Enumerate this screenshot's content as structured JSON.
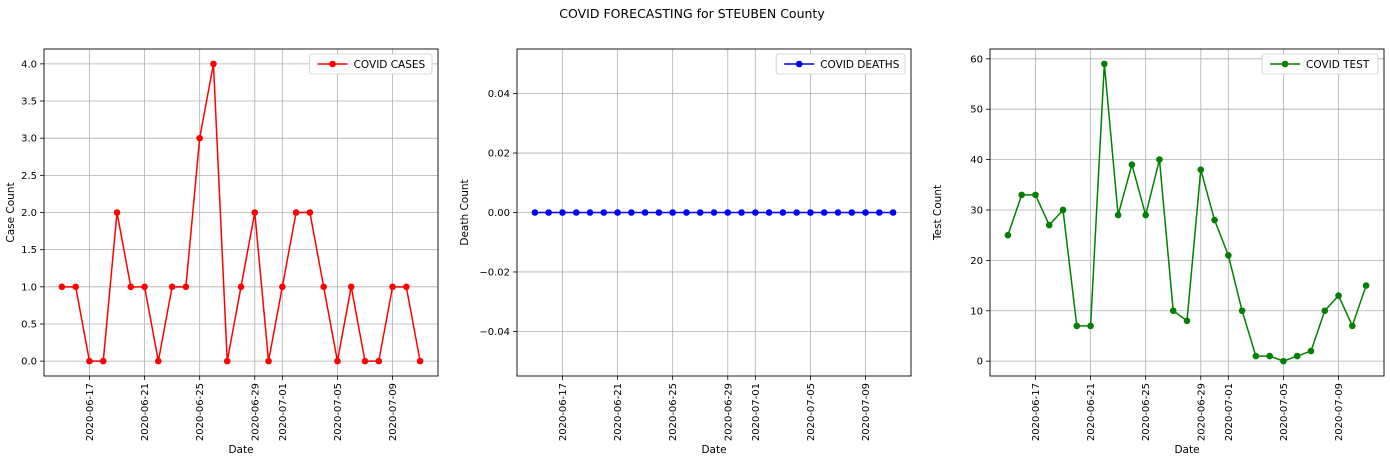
{
  "figure": {
    "title": "COVID FORECASTING for STEUBEN County"
  },
  "chart_data": [
    {
      "type": "line",
      "xlabel": "Date",
      "ylabel": "Case Count",
      "x": [
        "2020-06-15",
        "2020-06-16",
        "2020-06-17",
        "2020-06-18",
        "2020-06-19",
        "2020-06-20",
        "2020-06-21",
        "2020-06-22",
        "2020-06-23",
        "2020-06-24",
        "2020-06-25",
        "2020-06-26",
        "2020-06-27",
        "2020-06-28",
        "2020-06-29",
        "2020-06-30",
        "2020-07-01",
        "2020-07-02",
        "2020-07-03",
        "2020-07-04",
        "2020-07-05",
        "2020-07-06",
        "2020-07-07",
        "2020-07-08",
        "2020-07-09",
        "2020-07-10",
        "2020-07-11"
      ],
      "series": [
        {
          "name": "COVID CASES",
          "color": "#ff0000",
          "values": [
            1,
            1,
            0,
            0,
            2,
            1,
            1,
            0,
            1,
            1,
            3,
            4,
            0,
            1,
            2,
            0,
            1,
            2,
            2,
            1,
            0,
            1,
            0,
            0,
            1,
            1,
            0
          ]
        }
      ],
      "xticks": [
        "2020-06-17",
        "2020-06-21",
        "2020-06-25",
        "2020-06-29",
        "2020-07-01",
        "2020-07-05",
        "2020-07-09"
      ],
      "yticks": [
        0.0,
        0.5,
        1.0,
        1.5,
        2.0,
        2.5,
        3.0,
        3.5,
        4.0
      ],
      "ytick_labels": [
        "0.0",
        "0.5",
        "1.0",
        "1.5",
        "2.0",
        "2.5",
        "3.0",
        "3.5",
        "4.0"
      ],
      "ylim": [
        -0.2,
        4.2
      ],
      "grid": true,
      "legend": "top-right"
    },
    {
      "type": "line",
      "xlabel": "Date",
      "ylabel": "Death Count",
      "x": [
        "2020-06-15",
        "2020-06-16",
        "2020-06-17",
        "2020-06-18",
        "2020-06-19",
        "2020-06-20",
        "2020-06-21",
        "2020-06-22",
        "2020-06-23",
        "2020-06-24",
        "2020-06-25",
        "2020-06-26",
        "2020-06-27",
        "2020-06-28",
        "2020-06-29",
        "2020-06-30",
        "2020-07-01",
        "2020-07-02",
        "2020-07-03",
        "2020-07-04",
        "2020-07-05",
        "2020-07-06",
        "2020-07-07",
        "2020-07-08",
        "2020-07-09",
        "2020-07-10",
        "2020-07-11"
      ],
      "series": [
        {
          "name": "COVID DEATHS",
          "color": "#0000ff",
          "values": [
            0,
            0,
            0,
            0,
            0,
            0,
            0,
            0,
            0,
            0,
            0,
            0,
            0,
            0,
            0,
            0,
            0,
            0,
            0,
            0,
            0,
            0,
            0,
            0,
            0,
            0,
            0
          ]
        }
      ],
      "xticks": [
        "2020-06-17",
        "2020-06-21",
        "2020-06-25",
        "2020-06-29",
        "2020-07-01",
        "2020-07-05",
        "2020-07-09"
      ],
      "yticks": [
        -0.04,
        -0.02,
        0.0,
        0.02,
        0.04
      ],
      "ytick_labels": [
        "−0.04",
        "−0.02",
        "0.00",
        "0.02",
        "0.04"
      ],
      "ylim": [
        -0.055,
        0.055
      ],
      "grid": true,
      "legend": "top-right"
    },
    {
      "type": "line",
      "xlabel": "Date",
      "ylabel": "Test Count",
      "x": [
        "2020-06-15",
        "2020-06-16",
        "2020-06-17",
        "2020-06-18",
        "2020-06-19",
        "2020-06-20",
        "2020-06-21",
        "2020-06-22",
        "2020-06-23",
        "2020-06-24",
        "2020-06-25",
        "2020-06-26",
        "2020-06-27",
        "2020-06-28",
        "2020-06-29",
        "2020-06-30",
        "2020-07-01",
        "2020-07-02",
        "2020-07-03",
        "2020-07-04",
        "2020-07-05",
        "2020-07-06",
        "2020-07-07",
        "2020-07-08",
        "2020-07-09",
        "2020-07-10",
        "2020-07-11"
      ],
      "series": [
        {
          "name": "COVID TEST",
          "color": "#008000",
          "values": [
            25,
            33,
            33,
            27,
            30,
            7,
            7,
            59,
            29,
            39,
            29,
            40,
            10,
            8,
            38,
            28,
            21,
            10,
            1,
            1,
            0,
            1,
            2,
            10,
            13,
            7,
            15
          ]
        }
      ],
      "xticks": [
        "2020-06-17",
        "2020-06-21",
        "2020-06-25",
        "2020-06-29",
        "2020-07-01",
        "2020-07-05",
        "2020-07-09"
      ],
      "yticks": [
        0,
        10,
        20,
        30,
        40,
        50,
        60
      ],
      "ytick_labels": [
        "0",
        "10",
        "20",
        "30",
        "40",
        "50",
        "60"
      ],
      "ylim": [
        -2.95,
        61.95
      ],
      "grid": true,
      "legend": "top-right"
    }
  ]
}
